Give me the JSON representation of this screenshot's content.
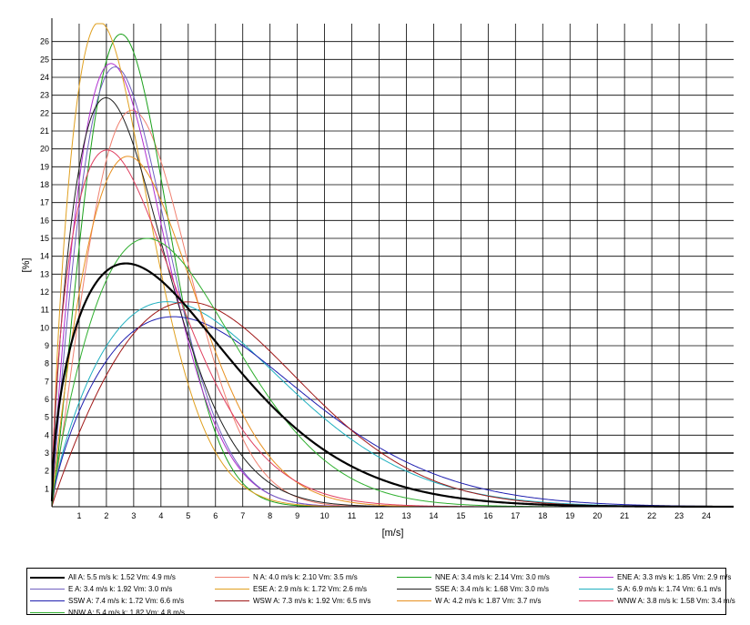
{
  "chart_data": {
    "type": "line",
    "xlabel": "[m/s]",
    "ylabel": "[%]",
    "xlim": [
      0,
      25
    ],
    "ylim": [
      0,
      27
    ],
    "x_ticks": [
      "1",
      "2",
      "3",
      "4",
      "5",
      "6",
      "7",
      "8",
      "9",
      "10",
      "11",
      "12",
      "13",
      "14",
      "15",
      "16",
      "17",
      "18",
      "19",
      "20",
      "21",
      "22",
      "23",
      "24"
    ],
    "y_ticks": [
      "1",
      "2",
      "3",
      "4",
      "5",
      "6",
      "7",
      "8",
      "9",
      "10",
      "11",
      "12",
      "13",
      "14",
      "15",
      "16",
      "17",
      "18",
      "19",
      "20",
      "21",
      "22",
      "23",
      "24",
      "25",
      "26"
    ],
    "grid": true,
    "reference_line_y": 3,
    "legend_position": "bottom",
    "series": [
      {
        "name": "All A: 5.5 m/s k: 1.52 Vm: 4.9 m/s",
        "A": 5.5,
        "k": 1.52,
        "color": "#000000",
        "width": 2.2
      },
      {
        "name": "N A: 4.0 m/s k: 2.10 Vm: 3.5 m/s",
        "A": 4.0,
        "k": 2.1,
        "color": "#f08070",
        "width": 1
      },
      {
        "name": "NNE A: 3.4 m/s k: 2.14 Vm: 3.0 m/s",
        "A": 3.4,
        "k": 2.14,
        "color": "#1aa01a",
        "width": 1
      },
      {
        "name": "ENE A: 3.3 m/s k: 1.85 Vm: 2.9 m/s",
        "A": 3.3,
        "k": 1.85,
        "color": "#b030d0",
        "width": 1
      },
      {
        "name": "E A: 3.4 m/s k: 1.92 Vm: 3.0 m/s",
        "A": 3.4,
        "k": 1.92,
        "color": "#7060c0",
        "width": 1
      },
      {
        "name": "ESE A: 2.9 m/s k: 1.72 Vm: 2.6 m/s",
        "A": 2.9,
        "k": 1.72,
        "color": "#e0a020",
        "width": 1
      },
      {
        "name": "SSE A: 3.4 m/s k: 1.68 Vm: 3.0 m/s",
        "A": 3.4,
        "k": 1.68,
        "color": "#202020",
        "width": 1
      },
      {
        "name": "S A: 6.9 m/s k: 1.74 Vm: 6.1 m/s",
        "A": 6.9,
        "k": 1.74,
        "color": "#20b0c0",
        "width": 1
      },
      {
        "name": "SSW A: 7.4 m/s k: 1.72 Vm: 6.6 m/s",
        "A": 7.4,
        "k": 1.72,
        "color": "#2020b0",
        "width": 1
      },
      {
        "name": "WSW A: 7.3 m/s k: 1.92 Vm: 6.5 m/s",
        "A": 7.3,
        "k": 1.92,
        "color": "#a01818",
        "width": 1
      },
      {
        "name": "W A: 4.2 m/s k: 1.87 Vm: 3.7 m/s",
        "A": 4.2,
        "k": 1.87,
        "color": "#e89020",
        "width": 1
      },
      {
        "name": "WNW A: 3.8 m/s k: 1.58 Vm: 3.4 m/s",
        "A": 3.8,
        "k": 1.58,
        "color": "#e04060",
        "width": 1
      },
      {
        "name": "NNW A: 5.4 m/s k: 1.82 Vm: 4.8 m/s",
        "A": 5.4,
        "k": 1.82,
        "color": "#30b030",
        "width": 1
      }
    ]
  }
}
